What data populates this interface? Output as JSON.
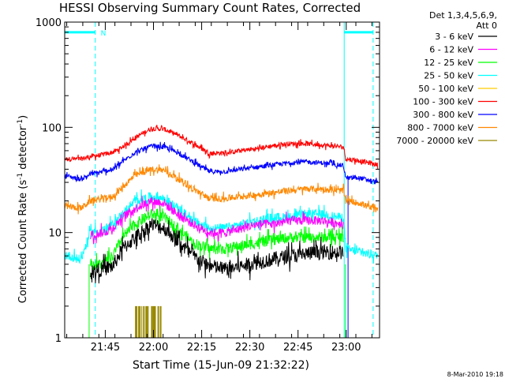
{
  "chart_data": {
    "type": "line",
    "title": "HESSI Observing Summary Count Rates, Corrected",
    "xlabel": "Start Time (15-Jun-09 21:32:22)",
    "ylabel_main": "Corrected Count Rate (s",
    "ylabel_sup1": "-1",
    "ylabel_mid": " detector",
    "ylabel_sup2": "-1",
    "ylabel_end": ")",
    "yscale": "log",
    "ylim": [
      1,
      1000
    ],
    "y_ticks": [
      {
        "value": 1,
        "label": "1"
      },
      {
        "value": 10,
        "label": "10"
      },
      {
        "value": 100,
        "label": "100"
      },
      {
        "value": 1000,
        "label": "1000"
      }
    ],
    "xlim_minutes": [
      0,
      98
    ],
    "x_ticks": [
      {
        "minute": 12.63,
        "label": "21:45"
      },
      {
        "minute": 27.63,
        "label": "22:00"
      },
      {
        "minute": 42.63,
        "label": "22:15"
      },
      {
        "minute": 57.63,
        "label": "22:30"
      },
      {
        "minute": 72.63,
        "label": "22:45"
      },
      {
        "minute": 87.63,
        "label": "23:00"
      }
    ],
    "legend": {
      "position": "right",
      "header": [
        "Det 1,3,4,5,6,9,",
        "Att 0"
      ],
      "entries": [
        {
          "label": "3 - 6 keV",
          "color": "#000000"
        },
        {
          "label": "6 - 12 keV",
          "color": "#ff00ff"
        },
        {
          "label": "12 - 25 keV",
          "color": "#00ff00"
        },
        {
          "label": "25 - 50 keV",
          "color": "#00ffff"
        },
        {
          "label": "50 - 100 keV",
          "color": "#ffcc00"
        },
        {
          "label": "100 - 300 keV",
          "color": "#ff0000"
        },
        {
          "label": "300 - 800 keV",
          "color": "#0000ff"
        },
        {
          "label": "800 - 7000 keV",
          "color": "#ff8800"
        },
        {
          "label": "7000 - 20000 keV",
          "color": "#998800"
        }
      ]
    },
    "series": [
      {
        "name": "100 - 300 keV",
        "color": "#ff0000",
        "start": 0,
        "end": 97.5,
        "noise": 0.05,
        "points": [
          [
            0,
            50
          ],
          [
            5,
            50
          ],
          [
            8,
            53
          ],
          [
            12,
            55
          ],
          [
            15,
            58
          ],
          [
            18,
            65
          ],
          [
            22,
            80
          ],
          [
            27,
            98
          ],
          [
            31,
            96
          ],
          [
            35,
            85
          ],
          [
            40,
            70
          ],
          [
            45,
            57
          ],
          [
            50,
            57
          ],
          [
            55,
            60
          ],
          [
            60,
            63
          ],
          [
            65,
            67
          ],
          [
            70,
            70
          ],
          [
            75,
            70
          ],
          [
            80,
            68
          ],
          [
            85,
            66
          ],
          [
            86.8,
            65
          ],
          [
            87.5,
            50
          ],
          [
            92,
            48
          ],
          [
            97.5,
            44
          ]
        ]
      },
      {
        "name": "300 - 800 keV",
        "color": "#0000ff",
        "start": 0,
        "end": 97.5,
        "noise": 0.05,
        "points": [
          [
            0,
            35
          ],
          [
            5,
            32
          ],
          [
            8,
            36
          ],
          [
            12,
            38
          ],
          [
            15,
            40
          ],
          [
            18,
            47
          ],
          [
            22,
            58
          ],
          [
            27,
            66
          ],
          [
            31,
            65
          ],
          [
            35,
            58
          ],
          [
            40,
            47
          ],
          [
            45,
            38
          ],
          [
            50,
            38
          ],
          [
            55,
            40
          ],
          [
            60,
            42
          ],
          [
            65,
            44
          ],
          [
            70,
            46
          ],
          [
            75,
            47
          ],
          [
            80,
            46
          ],
          [
            85,
            44
          ],
          [
            86.8,
            43
          ],
          [
            87.5,
            33
          ],
          [
            92,
            33
          ],
          [
            97.5,
            30
          ]
        ]
      },
      {
        "name": "800 - 7000 keV",
        "color": "#ff8800",
        "start": 0,
        "end": 97.5,
        "noise": 0.07,
        "points": [
          [
            0,
            18
          ],
          [
            5,
            17
          ],
          [
            8,
            20
          ],
          [
            12,
            21
          ],
          [
            15,
            22
          ],
          [
            18,
            27
          ],
          [
            22,
            35
          ],
          [
            27,
            40
          ],
          [
            31,
            39
          ],
          [
            35,
            33
          ],
          [
            40,
            26
          ],
          [
            45,
            21
          ],
          [
            50,
            21
          ],
          [
            55,
            22
          ],
          [
            60,
            23
          ],
          [
            65,
            24
          ],
          [
            70,
            25
          ],
          [
            75,
            26
          ],
          [
            80,
            26
          ],
          [
            85,
            25
          ],
          [
            86.8,
            25
          ],
          [
            87.5,
            20
          ],
          [
            92,
            19
          ],
          [
            97.5,
            16
          ]
        ]
      },
      {
        "name": "25 - 50 keV",
        "color": "#00ffff",
        "start": 0,
        "end": 97.5,
        "noise": 0.1,
        "points": [
          [
            0,
            6.2
          ],
          [
            5,
            5.5
          ],
          [
            8,
            10
          ],
          [
            12,
            10.5
          ],
          [
            15,
            12
          ],
          [
            18,
            15
          ],
          [
            22,
            20
          ],
          [
            27,
            22
          ],
          [
            31,
            21
          ],
          [
            35,
            17
          ],
          [
            40,
            13
          ],
          [
            45,
            11
          ],
          [
            50,
            11
          ],
          [
            55,
            12
          ],
          [
            60,
            13
          ],
          [
            65,
            14
          ],
          [
            70,
            14
          ],
          [
            75,
            15
          ],
          [
            80,
            15
          ],
          [
            85,
            14
          ],
          [
            86.8,
            14
          ],
          [
            87.5,
            7
          ],
          [
            92,
            6.5
          ],
          [
            97.5,
            6
          ]
        ]
      },
      {
        "name": "6 - 12 keV",
        "color": "#ff00ff",
        "start": 8,
        "end": 86.8,
        "noise": 0.1,
        "points": [
          [
            8,
            9.5
          ],
          [
            12,
            10
          ],
          [
            15,
            11
          ],
          [
            18,
            14
          ],
          [
            22,
            17
          ],
          [
            27,
            20
          ],
          [
            31,
            19
          ],
          [
            35,
            15
          ],
          [
            40,
            12
          ],
          [
            45,
            10
          ],
          [
            50,
            10
          ],
          [
            55,
            11
          ],
          [
            60,
            12
          ],
          [
            65,
            12
          ],
          [
            70,
            13
          ],
          [
            75,
            13
          ],
          [
            80,
            13
          ],
          [
            86.8,
            12
          ]
        ]
      },
      {
        "name": "12 - 25 keV",
        "color": "#00ff00",
        "start": 8,
        "end": 86.8,
        "noise": 0.12,
        "points": [
          [
            8,
            5
          ],
          [
            12,
            5
          ],
          [
            15,
            6
          ],
          [
            18,
            9
          ],
          [
            22,
            12
          ],
          [
            27,
            15
          ],
          [
            31,
            14
          ],
          [
            35,
            11
          ],
          [
            40,
            8
          ],
          [
            45,
            7
          ],
          [
            50,
            7
          ],
          [
            55,
            7.5
          ],
          [
            60,
            8
          ],
          [
            65,
            8.5
          ],
          [
            70,
            9
          ],
          [
            75,
            9
          ],
          [
            80,
            9
          ],
          [
            86.8,
            9
          ]
        ]
      },
      {
        "name": "3 - 6 keV",
        "color": "#000000",
        "start": 8,
        "end": 86.8,
        "noise": 0.16,
        "points": [
          [
            8,
            4.2
          ],
          [
            12,
            4.5
          ],
          [
            15,
            4.8
          ],
          [
            18,
            7
          ],
          [
            22,
            9
          ],
          [
            27,
            12
          ],
          [
            31,
            11
          ],
          [
            35,
            8.5
          ],
          [
            40,
            6
          ],
          [
            45,
            4.8
          ],
          [
            50,
            4.5
          ],
          [
            55,
            4.8
          ],
          [
            60,
            5.2
          ],
          [
            65,
            5.6
          ],
          [
            70,
            6
          ],
          [
            75,
            6.3
          ],
          [
            80,
            6.5
          ],
          [
            86.8,
            6.5
          ]
        ]
      }
    ],
    "burst_7000_20000": {
      "color": "#998800",
      "x_range": [
        22,
        30
      ],
      "level": 2
    },
    "flag_lines": {
      "color": "#00ffff",
      "solid_minutes": [
        87
      ],
      "dashed_minutes": [
        9.5,
        96
      ],
      "n_marker": {
        "minute": 11.2,
        "label": "N"
      }
    },
    "step_lines": {
      "green_x": [
        7.6,
        87.4
      ],
      "blue_x": [
        88.2
      ],
      "cyan_top": {
        "left": [
          0,
          9.5
        ],
        "right": [
          87,
          96
        ],
        "level": 800
      }
    },
    "footer_text": "8-Mar-2010 19:18"
  }
}
